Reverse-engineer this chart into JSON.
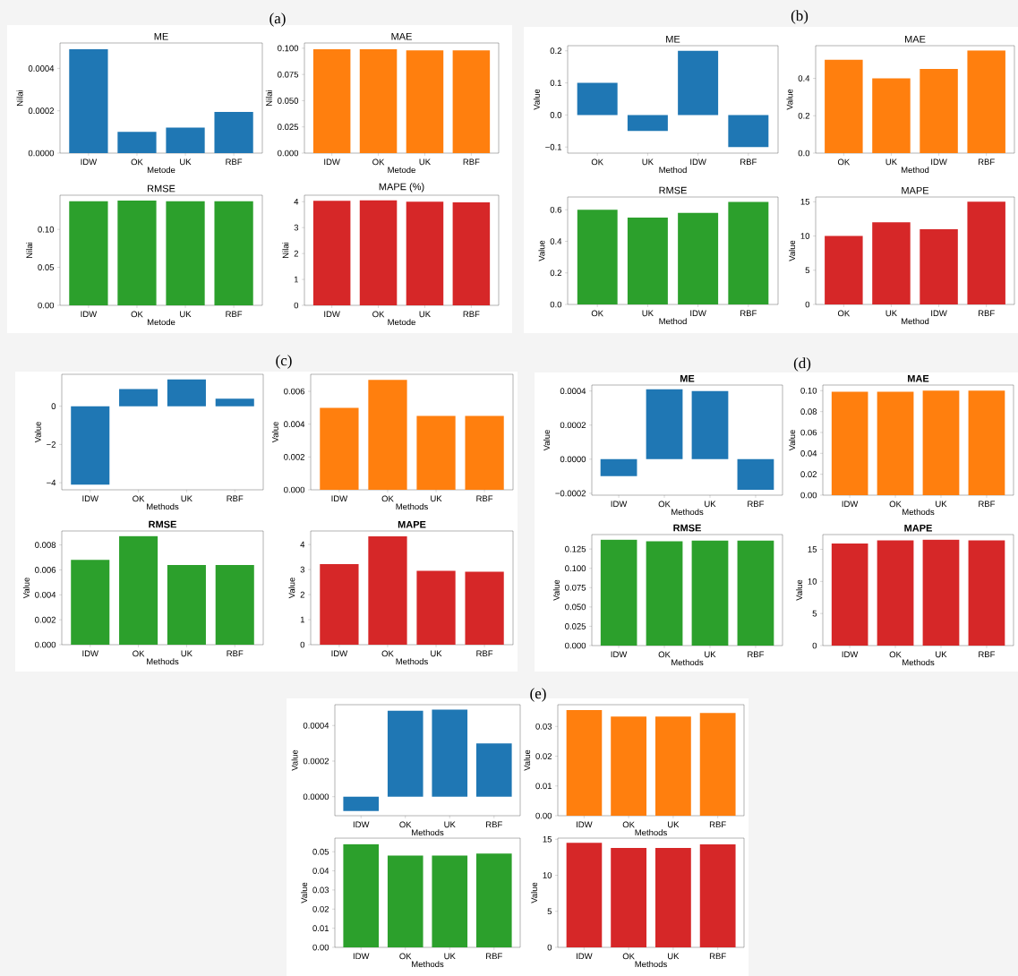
{
  "chart_data": [
    {
      "type": "bar",
      "title": "ME",
      "xlabel": "Metode",
      "ylabel": "Nilai",
      "annotations": [
        "(a)"
      ],
      "categories": [
        "IDW",
        "OK",
        "UK",
        "RBF"
      ],
      "values": [
        0.00049,
        0.0001,
        0.00012,
        0.000195
      ],
      "color": "#1f77b4",
      "ylim": [
        0,
        0.00052
      ],
      "yticks": [
        {
          "value": 0,
          "label": "0.0000"
        },
        {
          "value": 0.0002,
          "label": "0.0002"
        },
        {
          "value": 0.0004,
          "label": "0.0004"
        }
      ]
    },
    {
      "type": "bar",
      "title": "MAE",
      "xlabel": "Metode",
      "ylabel": "Nilai",
      "categories": [
        "IDW",
        "OK",
        "UK",
        "RBF"
      ],
      "values": [
        0.099,
        0.099,
        0.098,
        0.098
      ],
      "color": "#ff7f0e",
      "ylim": [
        0,
        0.105
      ],
      "yticks": [
        {
          "value": 0,
          "label": "0.000"
        },
        {
          "value": 0.025,
          "label": "0.025"
        },
        {
          "value": 0.05,
          "label": "0.050"
        },
        {
          "value": 0.075,
          "label": "0.075"
        },
        {
          "value": 0.1,
          "label": "0.100"
        }
      ]
    },
    {
      "type": "bar",
      "title": "RMSE",
      "xlabel": "Metode",
      "ylabel": "Nilai",
      "categories": [
        "IDW",
        "OK",
        "UK",
        "RBF"
      ],
      "values": [
        0.137,
        0.138,
        0.137,
        0.137
      ],
      "color": "#2ca02c",
      "ylim": [
        0,
        0.145
      ],
      "yticks": [
        {
          "value": 0,
          "label": "0.00"
        },
        {
          "value": 0.05,
          "label": "0.05"
        },
        {
          "value": 0.1,
          "label": "0.10"
        }
      ]
    },
    {
      "type": "bar",
      "title": "MAPE (%)",
      "xlabel": "Metode",
      "ylabel": "Nilai",
      "categories": [
        "IDW",
        "OK",
        "UK",
        "RBF"
      ],
      "values": [
        4.03,
        4.05,
        4.0,
        3.97
      ],
      "color": "#d62728",
      "ylim": [
        0,
        4.25
      ],
      "yticks": [
        0,
        1,
        2,
        3,
        4
      ]
    },
    {
      "type": "bar",
      "title": "ME",
      "xlabel": "Method",
      "ylabel": "Value",
      "annotations": [
        "(b)"
      ],
      "categories": [
        "OK",
        "UK",
        "IDW",
        "RBF"
      ],
      "values": [
        0.1,
        -0.05,
        0.2,
        -0.1
      ],
      "color": "#1f77b4",
      "ylim": [
        -0.119,
        0.216
      ],
      "yticks": [
        {
          "value": -0.1,
          "label": "−0.1"
        },
        {
          "value": 0,
          "label": "0.0"
        },
        {
          "value": 0.1,
          "label": "0.1"
        },
        {
          "value": 0.2,
          "label": "0.2"
        }
      ]
    },
    {
      "type": "bar",
      "title": "MAE",
      "xlabel": "Method",
      "ylabel": "Value",
      "categories": [
        "OK",
        "UK",
        "IDW",
        "RBF"
      ],
      "values": [
        0.5,
        0.4,
        0.45,
        0.55
      ],
      "color": "#ff7f0e",
      "ylim": [
        0,
        0.575
      ],
      "yticks": [
        {
          "value": 0,
          "label": "0.0"
        },
        {
          "value": 0.2,
          "label": "0.2"
        },
        {
          "value": 0.4,
          "label": "0.4"
        }
      ]
    },
    {
      "type": "bar",
      "title": "RMSE",
      "xlabel": "Method",
      "ylabel": "Value",
      "categories": [
        "OK",
        "UK",
        "IDW",
        "RBF"
      ],
      "values": [
        0.6,
        0.55,
        0.58,
        0.65
      ],
      "color": "#2ca02c",
      "ylim": [
        0,
        0.681
      ],
      "yticks": [
        {
          "value": 0,
          "label": "0.0"
        },
        {
          "value": 0.2,
          "label": "0.2"
        },
        {
          "value": 0.4,
          "label": "0.4"
        },
        {
          "value": 0.6,
          "label": "0.6"
        }
      ]
    },
    {
      "type": "bar",
      "title": "MAPE",
      "xlabel": "Method",
      "ylabel": "Value",
      "categories": [
        "OK",
        "UK",
        "IDW",
        "RBF"
      ],
      "values": [
        10,
        12,
        11,
        15
      ],
      "color": "#d62728",
      "ylim": [
        0,
        15.7
      ],
      "yticks": [
        0,
        5,
        10,
        15
      ]
    },
    {
      "type": "bar",
      "xlabel": "Methods",
      "ylabel": "Value",
      "annotations": [
        "(c)"
      ],
      "categories": [
        "IDW",
        "OK",
        "UK",
        "RBF"
      ],
      "values": [
        -4.1,
        0.9,
        1.4,
        0.4
      ],
      "color": "#1f77b4",
      "ylim": [
        -4.37,
        1.67
      ],
      "yticks": [
        {
          "value": -4,
          "label": "−4"
        },
        {
          "value": -2,
          "label": "−2"
        },
        0
      ]
    },
    {
      "type": "bar",
      "xlabel": "Methods",
      "ylabel": "Value",
      "categories": [
        "IDW",
        "OK",
        "UK",
        "RBF"
      ],
      "values": [
        0.005,
        0.0067,
        0.0045,
        0.0045
      ],
      "color": "#ff7f0e",
      "ylim": [
        0,
        0.00704
      ],
      "yticks": [
        {
          "value": 0,
          "label": "0.000"
        },
        {
          "value": 0.002,
          "label": "0.002"
        },
        {
          "value": 0.004,
          "label": "0.004"
        },
        {
          "value": 0.006,
          "label": "0.006"
        }
      ]
    },
    {
      "type": "bar",
      "title": "RMSE",
      "xlabel": "Methods",
      "ylabel": "Value",
      "categories": [
        "IDW",
        "OK",
        "UK",
        "RBF"
      ],
      "values": [
        0.0068,
        0.0087,
        0.0064,
        0.0064
      ],
      "color": "#2ca02c",
      "ylim": [
        0,
        0.00912
      ],
      "yticks": [
        {
          "value": 0,
          "label": "0.000"
        },
        {
          "value": 0.002,
          "label": "0.002"
        },
        {
          "value": 0.004,
          "label": "0.004"
        },
        {
          "value": 0.006,
          "label": "0.006"
        },
        {
          "value": 0.008,
          "label": "0.008"
        }
      ]
    },
    {
      "type": "bar",
      "title": "MAPE",
      "xlabel": "Methods",
      "ylabel": "Value",
      "categories": [
        "IDW",
        "OK",
        "UK",
        "RBF"
      ],
      "values": [
        3.22,
        4.33,
        2.95,
        2.91
      ],
      "color": "#d62728",
      "ylim": [
        0,
        4.54
      ],
      "yticks": [
        0,
        1,
        2,
        3,
        4
      ]
    },
    {
      "type": "bar",
      "title": "ME",
      "xlabel": "Methods",
      "ylabel": "Value",
      "annotations": [
        "(d)"
      ],
      "categories": [
        "IDW",
        "OK",
        "UK",
        "RBF"
      ],
      "values": [
        -0.0001,
        0.00041,
        0.0004,
        -0.00018
      ],
      "color": "#1f77b4",
      "ylim": [
        -0.000211,
        0.000435
      ],
      "yticks": [
        {
          "value": -0.0002,
          "label": "−0.0002"
        },
        {
          "value": 0,
          "label": "0.0000"
        },
        {
          "value": 0.0002,
          "label": "0.0002"
        },
        {
          "value": 0.0004,
          "label": "0.0004"
        }
      ]
    },
    {
      "type": "bar",
      "title": "MAE",
      "xlabel": "Methods",
      "ylabel": "Value",
      "categories": [
        "IDW",
        "OK",
        "UK",
        "RBF"
      ],
      "values": [
        0.099,
        0.099,
        0.1,
        0.1
      ],
      "color": "#ff7f0e",
      "ylim": [
        0,
        0.1054
      ],
      "yticks": [
        {
          "value": 0,
          "label": "0.00"
        },
        {
          "value": 0.02,
          "label": "0.02"
        },
        {
          "value": 0.04,
          "label": "0.04"
        },
        {
          "value": 0.06,
          "label": "0.06"
        },
        {
          "value": 0.08,
          "label": "0.08"
        },
        {
          "value": 0.1,
          "label": "0.10"
        }
      ]
    },
    {
      "type": "bar",
      "title": "RMSE",
      "xlabel": "Methods",
      "ylabel": "Value",
      "categories": [
        "IDW",
        "OK",
        "UK",
        "RBF"
      ],
      "values": [
        0.137,
        0.135,
        0.136,
        0.136
      ],
      "color": "#2ca02c",
      "ylim": [
        0,
        0.1437
      ],
      "yticks": [
        {
          "value": 0,
          "label": "0.000"
        },
        {
          "value": 0.025,
          "label": "0.025"
        },
        {
          "value": 0.05,
          "label": "0.050"
        },
        {
          "value": 0.075,
          "label": "0.075"
        },
        {
          "value": 0.1,
          "label": "0.100"
        },
        {
          "value": 0.125,
          "label": "0.125"
        }
      ]
    },
    {
      "type": "bar",
      "title": "MAPE",
      "xlabel": "Methods",
      "ylabel": "Value",
      "categories": [
        "IDW",
        "OK",
        "UK",
        "RBF"
      ],
      "values": [
        15.9,
        16.4,
        16.5,
        16.4
      ],
      "color": "#d62728",
      "ylim": [
        0,
        17.3
      ],
      "yticks": [
        0,
        5,
        10,
        15
      ]
    },
    {
      "type": "bar",
      "xlabel": "Methods",
      "ylabel": "Value",
      "annotations": [
        "(e)"
      ],
      "categories": [
        "IDW",
        "OK",
        "UK",
        "RBF"
      ],
      "values": [
        -8e-05,
        0.000483,
        0.00049,
        0.0003
      ],
      "color": "#1f77b4",
      "ylim": [
        -0.000107,
        0.000517
      ],
      "yticks": [
        {
          "value": 0,
          "label": "0.0000"
        },
        {
          "value": 0.0002,
          "label": "0.0002"
        },
        {
          "value": 0.0004,
          "label": "0.0004"
        }
      ]
    },
    {
      "type": "bar",
      "xlabel": "Methods",
      "ylabel": "Value",
      "categories": [
        "IDW",
        "OK",
        "UK",
        "RBF"
      ],
      "values": [
        0.0355,
        0.0333,
        0.0333,
        0.0345
      ],
      "color": "#ff7f0e",
      "ylim": [
        0,
        0.0373
      ],
      "yticks": [
        {
          "value": 0,
          "label": "0.00"
        },
        {
          "value": 0.01,
          "label": "0.01"
        },
        {
          "value": 0.02,
          "label": "0.02"
        },
        {
          "value": 0.03,
          "label": "0.03"
        }
      ]
    },
    {
      "type": "bar",
      "xlabel": "Methods",
      "ylabel": "Value",
      "categories": [
        "IDW",
        "OK",
        "UK",
        "RBF"
      ],
      "values": [
        0.054,
        0.048,
        0.048,
        0.049
      ],
      "color": "#2ca02c",
      "ylim": [
        0,
        0.0571
      ],
      "yticks": [
        {
          "value": 0,
          "label": "0.00"
        },
        {
          "value": 0.01,
          "label": "0.01"
        },
        {
          "value": 0.02,
          "label": "0.02"
        },
        {
          "value": 0.03,
          "label": "0.03"
        },
        {
          "value": 0.04,
          "label": "0.04"
        },
        {
          "value": 0.05,
          "label": "0.05"
        }
      ]
    },
    {
      "type": "bar",
      "xlabel": "Methods",
      "ylabel": "Value",
      "categories": [
        "IDW",
        "OK",
        "UK",
        "RBF"
      ],
      "values": [
        14.5,
        13.8,
        13.8,
        14.3
      ],
      "color": "#d62728",
      "ylim": [
        0,
        15.16
      ],
      "yticks": [
        0,
        5,
        10,
        15
      ]
    }
  ]
}
